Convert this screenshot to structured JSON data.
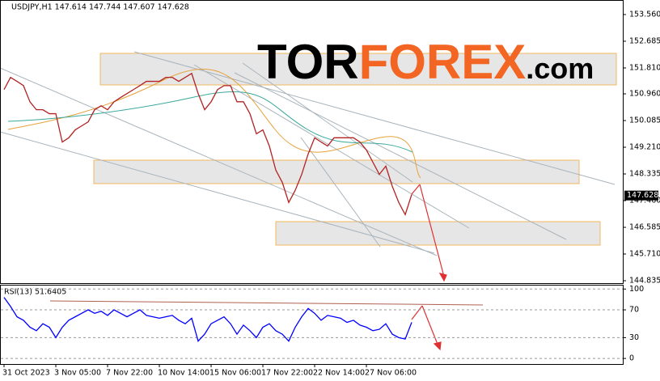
{
  "chart_data": [
    {
      "type": "line",
      "title": "USDJPY,H1 147.614 147.744 147.607 147.628",
      "color": "#b22222",
      "grid": false,
      "categories": [
        "31 Oct 2023",
        null,
        null,
        null,
        null,
        null,
        null,
        null,
        "3 Nov 05:00",
        null,
        null,
        null,
        null,
        null,
        null,
        null,
        "7 Nov 22:00",
        null,
        null,
        null,
        null,
        null,
        null,
        null,
        "10 Nov 14:00",
        null,
        null,
        null,
        null,
        null,
        null,
        null,
        "15 Nov 06:00",
        null,
        null,
        null,
        null,
        null,
        null,
        null,
        "17 Nov 22:00",
        null,
        null,
        null,
        null,
        null,
        null,
        null,
        "22 Nov 14:00",
        null,
        null,
        null,
        null,
        null,
        null,
        null,
        "27 Nov 06:00",
        null,
        null,
        null,
        null,
        null,
        null,
        null
      ],
      "values": [
        151.1,
        151.5,
        151.37,
        151.23,
        150.7,
        150.44,
        150.44,
        150.31,
        150.31,
        149.38,
        149.52,
        149.78,
        149.91,
        150.04,
        150.44,
        150.57,
        150.44,
        150.7,
        150.84,
        150.97,
        151.1,
        151.23,
        151.37,
        151.37,
        151.37,
        151.5,
        151.5,
        151.37,
        151.5,
        151.63,
        150.97,
        150.44,
        150.7,
        151.1,
        151.23,
        151.23,
        150.7,
        150.7,
        150.31,
        149.65,
        149.78,
        149.25,
        148.46,
        148.06,
        147.4,
        147.8,
        148.32,
        148.99,
        149.52,
        149.38,
        149.25,
        149.52,
        149.52,
        149.52,
        149.52,
        149.38,
        149.12,
        148.72,
        148.32,
        148.59,
        147.93,
        147.4,
        147.0,
        147.66
      ],
      "ylim": [
        144.756,
        154.01
      ],
      "yticks": [
        {
          "value": 153.56,
          "label": "153.560"
        },
        {
          "value": 152.685,
          "label": "152.685"
        },
        {
          "value": 151.81,
          "label": "151.810"
        },
        {
          "value": 150.96,
          "label": "150.960"
        },
        {
          "value": 150.085,
          "label": "150.085"
        },
        {
          "value": 149.21,
          "label": "149.210"
        },
        {
          "value": 148.335,
          "label": "148.335"
        },
        {
          "value": 147.46,
          "label": "147.460"
        },
        {
          "value": 146.585,
          "label": "146.585"
        },
        {
          "value": 145.71,
          "label": "145.710"
        },
        {
          "value": 144.835,
          "label": "144.835"
        }
      ],
      "last_price": 147.628
    },
    {
      "type": "line",
      "title": "RSI(13) 51.6405",
      "color": "#0000ff",
      "grid": true,
      "values": [
        88,
        75,
        60,
        55,
        45,
        40,
        50,
        45,
        30,
        45,
        55,
        60,
        65,
        70,
        65,
        68,
        62,
        70,
        65,
        60,
        65,
        70,
        62,
        60,
        58,
        60,
        62,
        55,
        50,
        58,
        25,
        35,
        50,
        55,
        60,
        50,
        35,
        48,
        40,
        30,
        45,
        50,
        40,
        35,
        25,
        45,
        60,
        72,
        65,
        55,
        62,
        60,
        58,
        52,
        55,
        48,
        45,
        40,
        42,
        50,
        35,
        30,
        28,
        52
      ],
      "ylim": [
        -8,
        105
      ],
      "yticks": [
        100,
        70,
        30,
        0
      ]
    }
  ],
  "logo": {
    "part1": "TOR",
    "part2": "FOREX",
    "part3": ".com"
  }
}
